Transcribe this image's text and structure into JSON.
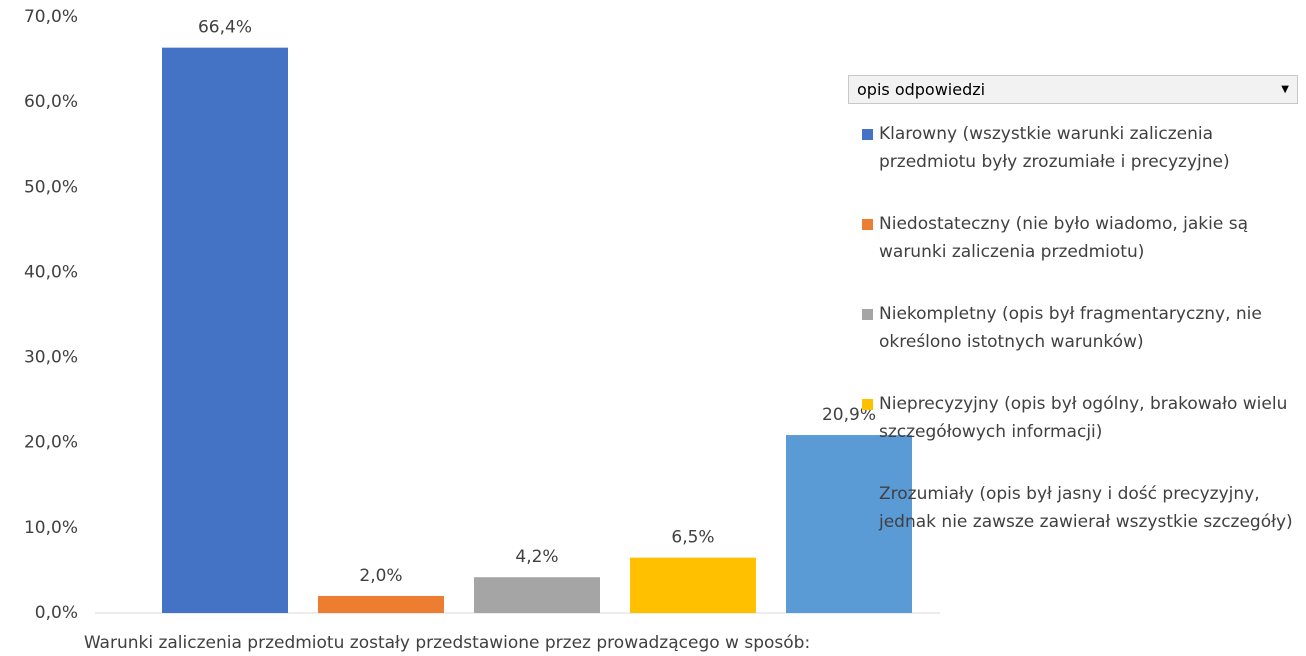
{
  "chart_data": {
    "type": "bar",
    "x_label": "Warunki zaliczenia przedmiotu zostały przedstawione przez prowadzącego w sposób:",
    "legend_title": "opis odpowiedzi",
    "ylim": [
      0,
      70
    ],
    "yticks": [
      {
        "value": 0,
        "label": "0,0%"
      },
      {
        "value": 10,
        "label": "10,0%"
      },
      {
        "value": 20,
        "label": "20,0%"
      },
      {
        "value": 30,
        "label": "30,0%"
      },
      {
        "value": 40,
        "label": "40,0%"
      },
      {
        "value": 50,
        "label": "50,0%"
      },
      {
        "value": 60,
        "label": "60,0%"
      },
      {
        "value": 70,
        "label": "70,0%"
      }
    ],
    "legend": "right",
    "series": [
      {
        "name": "Klarowny (wszystkie warunki zaliczenia przedmiotu były zrozumiałe i precyzyjne)",
        "color": "#4472c4",
        "values": [
          66.4
        ],
        "value_labels": [
          "66,4%"
        ]
      },
      {
        "name": "Niedostateczny (nie było wiadomo, jakie są warunki zaliczenia przedmiotu)",
        "color": "#ed7d31",
        "values": [
          2.0
        ],
        "value_labels": [
          "2,0%"
        ]
      },
      {
        "name": "Niekompletny (opis był fragmentaryczny, nie określono istotnych warunków)",
        "color": "#a5a5a5",
        "values": [
          4.2
        ],
        "value_labels": [
          "4,2%"
        ]
      },
      {
        "name": "Nieprecyzyjny (opis był ogólny, brakowało wielu szczegółowych informacji)",
        "color": "#ffc000",
        "values": [
          6.5
        ],
        "value_labels": [
          "6,5%"
        ]
      },
      {
        "name": "Zrozumiały (opis był jasny i dość precyzyjny, jednak nie zawsze zawierał wszystkie szczegóły)",
        "color": "#5b9bd5",
        "values": [
          20.9
        ],
        "value_labels": [
          "20,9%"
        ]
      }
    ]
  }
}
